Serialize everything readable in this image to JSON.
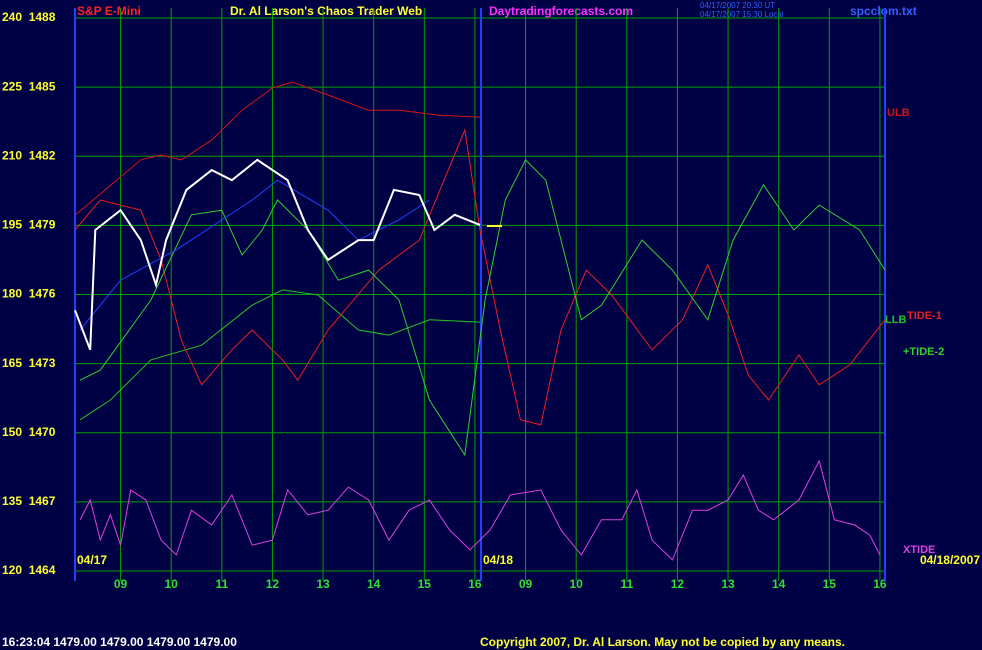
{
  "chart_data": {
    "type": "line",
    "header": {
      "instrument": "S&P E-Mini",
      "title": "Dr. Al Larson's Chaos Trader Web",
      "site": "Daytradingforecasts.com",
      "time_ut": "04/17/2007 20:30 UT",
      "time_local": "04/17/2007 15:30 Local",
      "file": "spcclom.txt"
    },
    "footer": {
      "quote": "16:23:04  1479.00 1479.00 1479.00 1479.00",
      "copyright": "Copyright 2007, Dr. Al Larson. May not be copied by any means."
    },
    "date_labels": [
      "04/17",
      "04/18",
      "04/18/2007"
    ],
    "xlim": [
      0,
      16
    ],
    "ylim": [
      120,
      240
    ],
    "grid": true,
    "xticks": [
      {
        "value": 0.9,
        "label": "09"
      },
      {
        "value": 1.9,
        "label": "10"
      },
      {
        "value": 2.9,
        "label": "11"
      },
      {
        "value": 3.9,
        "label": "12"
      },
      {
        "value": 4.9,
        "label": "13"
      },
      {
        "value": 5.9,
        "label": "14"
      },
      {
        "value": 6.9,
        "label": "15"
      },
      {
        "value": 7.9,
        "label": "16"
      },
      {
        "value": 8.9,
        "label": "09"
      },
      {
        "value": 9.9,
        "label": "10"
      },
      {
        "value": 10.9,
        "label": "11"
      },
      {
        "value": 11.9,
        "label": "12"
      },
      {
        "value": 12.9,
        "label": "13"
      },
      {
        "value": 13.9,
        "label": "14"
      },
      {
        "value": 14.9,
        "label": "15"
      },
      {
        "value": 15.9,
        "label": "16"
      }
    ],
    "yticks": [
      {
        "value": 240,
        "label": "240  1488"
      },
      {
        "value": 225,
        "label": "225  1485"
      },
      {
        "value": 210,
        "label": "210  1482"
      },
      {
        "value": 195,
        "label": "195  1479"
      },
      {
        "value": 180,
        "label": "180  1476"
      },
      {
        "value": 165,
        "label": "165  1473"
      },
      {
        "value": 150,
        "label": "150  1470"
      },
      {
        "value": 135,
        "label": "135  1467"
      },
      {
        "value": 120,
        "label": "120  1464"
      }
    ],
    "series": [
      {
        "name": "ULB",
        "color": "#d41414",
        "x": [
          0,
          1.3,
          1.7,
          2.1,
          2.7,
          3.3,
          3.9,
          4.3,
          5.0,
          5.8,
          6.4,
          7.2,
          8.0
        ],
        "values": [
          197.2,
          209.2,
          210.3,
          209.2,
          213.5,
          220.0,
          224.8,
          226.1,
          223.3,
          220.0,
          220.0,
          218.9,
          218.5
        ]
      },
      {
        "name": "LLB",
        "color": "#22c422",
        "x": [
          0.1,
          0.7,
          1.5,
          2.5,
          3.5,
          4.1,
          4.8,
          5.6,
          6.2,
          7.0,
          8.0
        ],
        "values": [
          152.8,
          157.1,
          165.8,
          169.0,
          177.7,
          181.0,
          179.9,
          172.3,
          171.2,
          174.5,
          174.0
        ]
      },
      {
        "name": "TIDE-1",
        "color": "#e82020",
        "x": [
          0,
          0.5,
          1.3,
          1.7,
          2.1,
          2.5,
          3.1,
          3.5,
          4.1,
          4.4,
          5.0,
          6.0,
          6.8,
          7.7,
          8.0,
          8.4,
          8.8,
          9.2,
          9.6,
          10.1,
          10.6,
          11.4,
          12.0,
          12.5,
          12.9,
          13.3,
          13.7,
          14.3,
          14.7,
          15.3,
          16.0
        ],
        "values": [
          194.0,
          200.5,
          198.3,
          187.5,
          170.1,
          160.4,
          168.0,
          172.3,
          165.8,
          161.4,
          172.3,
          185.3,
          191.8,
          215.7,
          194.0,
          172.3,
          152.8,
          151.7,
          172.3,
          185.3,
          179.9,
          168.0,
          174.5,
          186.4,
          175.6,
          162.5,
          157.1,
          166.9,
          160.4,
          164.7,
          174.5
        ]
      },
      {
        "name": "+TIDE-2",
        "color": "#30d030",
        "x": [
          0.1,
          0.5,
          1.5,
          2.3,
          2.9,
          3.3,
          3.7,
          4.0,
          4.6,
          5.2,
          5.8,
          6.4,
          7.0,
          7.7,
          8.1,
          8.5,
          8.9,
          9.3,
          10.0,
          10.4,
          11.2,
          11.8,
          12.5,
          13.0,
          13.6,
          14.2,
          14.7,
          15.5,
          16.0
        ],
        "values": [
          161.4,
          163.6,
          178.8,
          197.3,
          198.3,
          188.6,
          194.0,
          200.5,
          194.0,
          183.1,
          185.3,
          178.8,
          157.1,
          145.2,
          178.8,
          200.5,
          209.2,
          204.8,
          174.5,
          177.7,
          191.8,
          185.3,
          174.5,
          191.8,
          203.8,
          194.0,
          199.4,
          194.0,
          185.3
        ]
      },
      {
        "name": "XTIDE",
        "color": "#e040e0",
        "x": [
          0.1,
          0.3,
          0.5,
          0.7,
          0.9,
          1.1,
          1.4,
          1.7,
          2.0,
          2.3,
          2.7,
          3.1,
          3.5,
          3.9,
          4.2,
          4.6,
          5.0,
          5.4,
          5.8,
          6.2,
          6.6,
          7.0,
          7.4,
          7.8,
          8.2,
          8.6,
          9.2,
          9.6,
          10.0,
          10.4,
          10.8,
          11.1,
          11.4,
          11.8,
          12.2,
          12.5,
          12.9,
          13.2,
          13.5,
          13.8,
          14.3,
          14.7,
          15.0,
          15.4,
          15.7,
          15.9
        ],
        "values": [
          131.1,
          135.4,
          126.7,
          132.2,
          125.6,
          137.6,
          135.4,
          126.7,
          123.5,
          133.2,
          130.0,
          136.5,
          125.6,
          126.7,
          137.6,
          132.2,
          133.2,
          138.2,
          135.4,
          126.7,
          133.2,
          135.4,
          128.9,
          124.6,
          128.9,
          136.5,
          137.6,
          128.9,
          123.5,
          131.1,
          131.1,
          137.6,
          126.7,
          122.4,
          133.2,
          133.2,
          135.4,
          140.8,
          133.2,
          131.1,
          135.4,
          143.9,
          131.1,
          130.0,
          127.8,
          123.5
        ]
      },
      {
        "color": "#2040ff",
        "x": [
          0.1,
          0.9,
          2.0,
          3.5,
          4.0,
          5.0,
          5.6,
          6.4,
          7.0
        ],
        "values": [
          172.3,
          183.1,
          189.7,
          200.5,
          204.8,
          198.3,
          191.8,
          196.2,
          200.5
        ]
      },
      {
        "color": "#ffffff",
        "x": [
          0,
          0.3,
          0.4,
          0.9,
          1.3,
          1.6,
          1.8,
          2.2,
          2.7,
          3.1,
          3.6,
          4.2,
          4.6,
          5.0,
          5.6,
          5.9,
          6.3,
          6.8,
          7.1,
          7.5,
          8.0
        ],
        "values": [
          176.6,
          168.0,
          194.0,
          198.3,
          191.8,
          182.1,
          191.8,
          202.7,
          207.0,
          204.8,
          209.2,
          204.8,
          194.0,
          187.5,
          191.8,
          191.8,
          202.7,
          201.6,
          194.0,
          197.3,
          195.1
        ]
      }
    ]
  }
}
